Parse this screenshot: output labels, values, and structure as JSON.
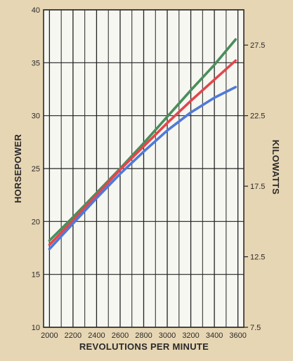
{
  "chart_data": {
    "type": "line",
    "title": "",
    "xlabel": "REVOLUTIONS PER MINUTE",
    "ylabel": "HORSEPOWER",
    "y2label": "KILOWATTS",
    "x_ticks": [
      "2000",
      "2200",
      "2400",
      "2600",
      "2800",
      "3000",
      "3200",
      "3400",
      "3600"
    ],
    "y_ticks": [
      "10",
      "15",
      "20",
      "25",
      "30",
      "35",
      "40"
    ],
    "y2_ticks": [
      "7.5",
      "12.5",
      "17.5",
      "22.5",
      "27.5"
    ],
    "xlim": [
      1950,
      3650
    ],
    "ylim": [
      10,
      40
    ],
    "y2lim": [
      7.5,
      30
    ],
    "grid": true,
    "series": [
      {
        "color": "#4a8e5c",
        "x": [
          2000,
          2200,
          2400,
          2600,
          2800,
          3000,
          3200,
          3400,
          3580
        ],
        "y": [
          18.2,
          20.4,
          22.7,
          25.0,
          27.4,
          29.9,
          32.4,
          34.8,
          37.2
        ]
      },
      {
        "color": "#e0474c",
        "x": [
          2000,
          2200,
          2400,
          2600,
          2800,
          3000,
          3200,
          3400,
          3580
        ],
        "y": [
          17.8,
          20.1,
          22.5,
          24.9,
          27.1,
          29.3,
          31.4,
          33.4,
          35.2
        ]
      },
      {
        "color": "#4f7ad8",
        "x": [
          2000,
          2200,
          2400,
          2600,
          2800,
          3000,
          3200,
          3400,
          3580
        ],
        "y": [
          17.4,
          19.8,
          22.2,
          24.5,
          26.6,
          28.6,
          30.3,
          31.7,
          32.7
        ]
      }
    ]
  }
}
